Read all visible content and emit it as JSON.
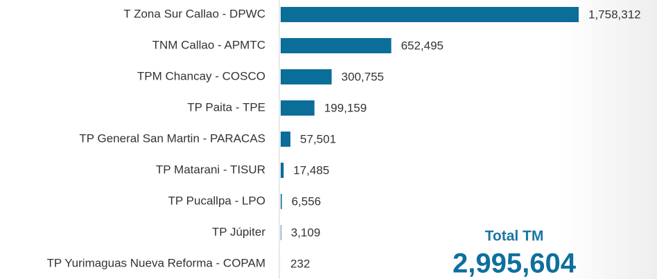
{
  "chart_data": {
    "type": "barh",
    "categories": [
      "T Zona Sur Callao - DPWC",
      "TNM Callao - APMTC",
      "TPM Chancay - COSCO",
      "TP Paita - TPE",
      "TP General San Martin - PARACAS",
      "TP Matarani - TISUR",
      "TP Pucallpa - LPO",
      "TP Júpiter",
      "TP Yurimaguas Nueva Reforma - COPAM"
    ],
    "values": [
      1758312,
      652495,
      300755,
      199159,
      57501,
      17485,
      6556,
      3109,
      232
    ],
    "value_labels": [
      "1,758,312",
      "652,495",
      "300,755",
      "199,159",
      "57,501",
      "17,485",
      "6,556",
      "3,109",
      "232"
    ],
    "color": "#0b6e99",
    "annotations": [
      "Total TM",
      "2,995,604"
    ]
  }
}
